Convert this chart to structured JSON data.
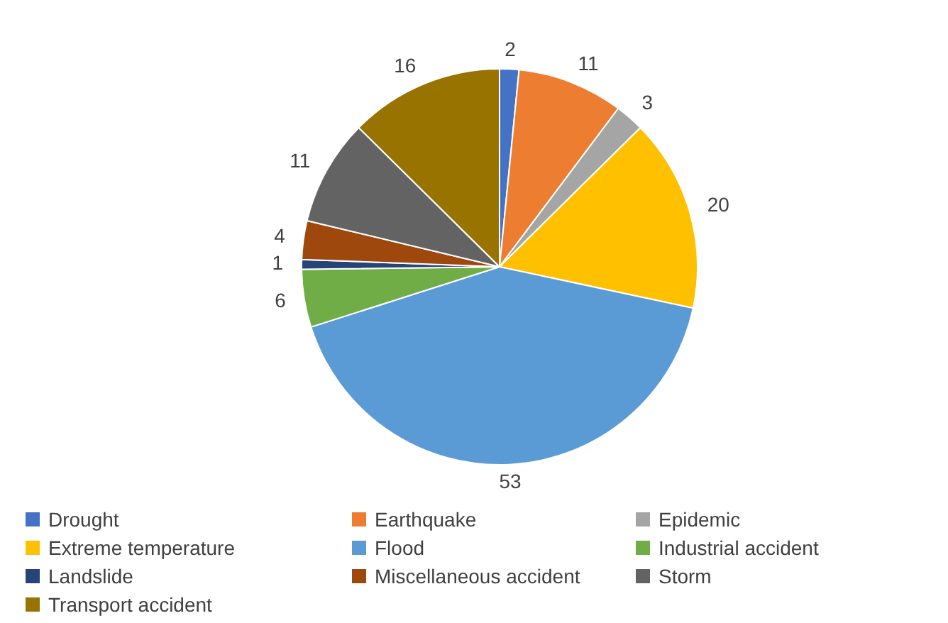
{
  "chart_data": {
    "type": "pie",
    "categories": [
      "Drought",
      "Earthquake",
      "Epidemic",
      "Extreme temperature",
      "Flood",
      "Industrial accident",
      "Landslide",
      "Miscellaneous accident",
      "Storm",
      "Transport accident"
    ],
    "values": [
      2,
      11,
      3,
      20,
      53,
      6,
      1,
      4,
      11,
      16
    ],
    "colors": [
      "#4472c4",
      "#ed7d31",
      "#a5a5a5",
      "#ffc000",
      "#5b9bd5",
      "#70ad47",
      "#264478",
      "#9e480e",
      "#636363",
      "#997300"
    ],
    "data_labels": true,
    "legend": "bottom"
  }
}
